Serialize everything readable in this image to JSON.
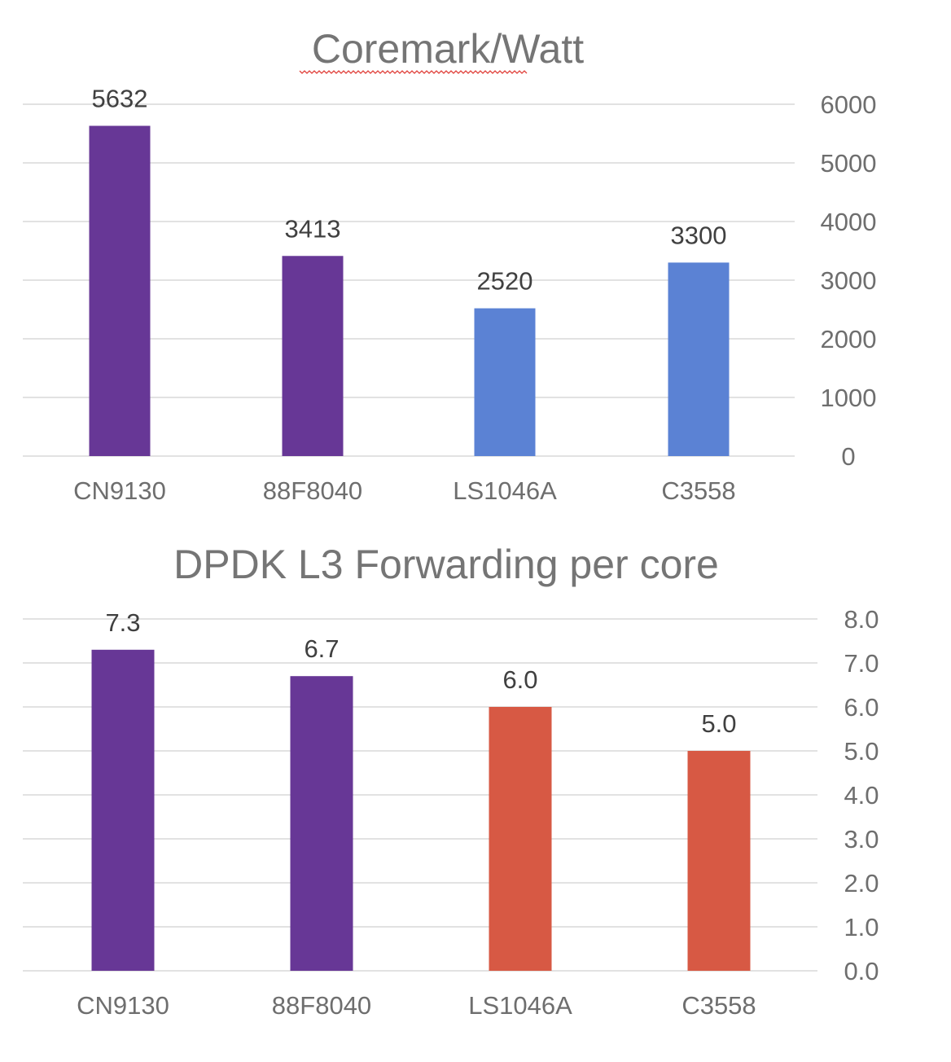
{
  "chart_data": [
    {
      "type": "bar",
      "title": "Coremark/Watt",
      "categories": [
        "CN9130",
        "88F8040",
        "LS1046A",
        "C3558"
      ],
      "values": [
        5632,
        3413,
        2520,
        3300
      ],
      "data_labels": [
        "5632",
        "3413",
        "2520",
        "3300"
      ],
      "colors": [
        "#673796",
        "#673796",
        "#5b82d4",
        "#5b82d4"
      ],
      "ylim": [
        0,
        6000
      ],
      "yticks": [
        0,
        1000,
        2000,
        3000,
        4000,
        5000,
        6000
      ],
      "ytick_labels": [
        "0",
        "1000",
        "2000",
        "3000",
        "4000",
        "5000",
        "6000"
      ],
      "y_axis_side": "right",
      "grid": true,
      "xlabel": "",
      "ylabel": ""
    },
    {
      "type": "bar",
      "title": "DPDK L3 Forwarding per core",
      "categories": [
        "CN9130",
        "88F8040",
        "LS1046A",
        "C3558"
      ],
      "values": [
        7.3,
        6.7,
        6.0,
        5.0
      ],
      "data_labels": [
        "7.3",
        "6.7",
        "6.0",
        "5.0"
      ],
      "colors": [
        "#673796",
        "#673796",
        "#d75944",
        "#d75944"
      ],
      "ylim": [
        0,
        8
      ],
      "yticks": [
        0,
        1,
        2,
        3,
        4,
        5,
        6,
        7,
        8
      ],
      "ytick_labels": [
        "0.0",
        "1.0",
        "2.0",
        "3.0",
        "4.0",
        "5.0",
        "6.0",
        "7.0",
        "8.0"
      ],
      "y_axis_side": "right",
      "grid": true,
      "xlabel": "",
      "ylabel": ""
    }
  ]
}
